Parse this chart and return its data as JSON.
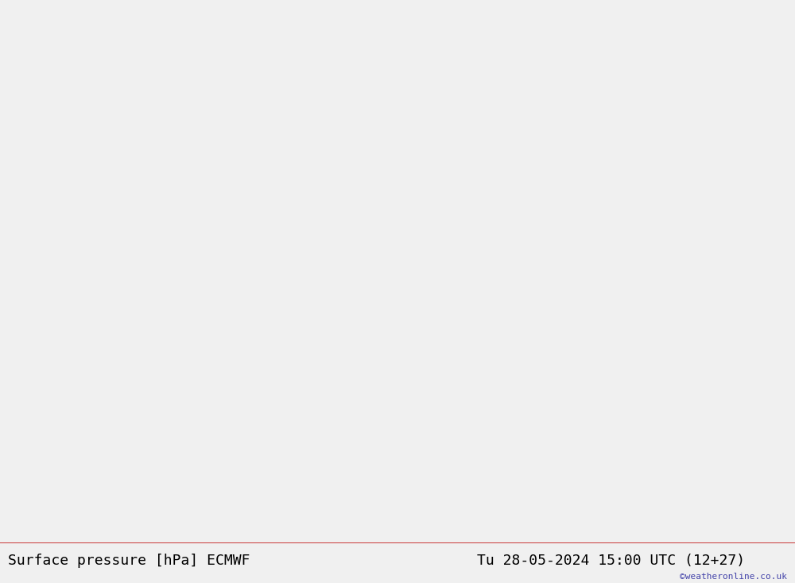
{
  "title_left": "Surface pressure [hPa] ECMWF",
  "title_right": "Tu 28-05-2024 15:00 UTC (12+27)",
  "watermark": "©weatheronline.co.uk",
  "background_color": "#d0d8e8",
  "land_color": "#c8e6a0",
  "land_color_uk": "#c8e6a0",
  "sea_color": "#dce8f0",
  "border_color": "#a0a0a8",
  "isobar_blue_color": "#0000cc",
  "isobar_black_color": "#000000",
  "isobar_red_color": "#cc0000",
  "label_fontsize": 9,
  "title_fontsize": 13,
  "bottom_bar_color": "#f0f0f0",
  "lon_min": -12,
  "lon_max": 25,
  "lat_min": 43,
  "lat_max": 62
}
